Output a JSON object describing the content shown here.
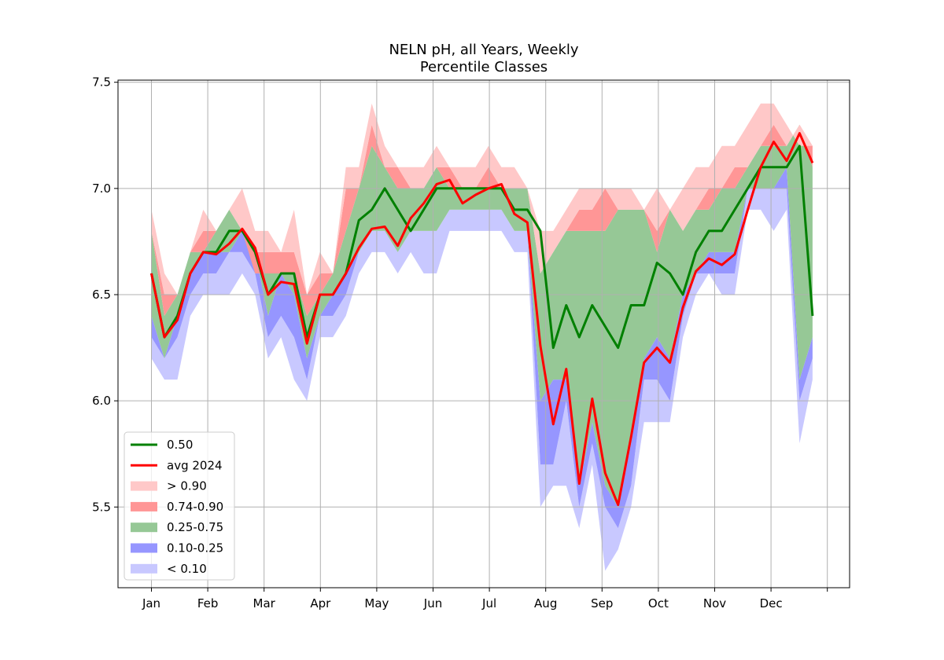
{
  "chart_data": {
    "type": "area",
    "title": "NELN pH, all Years, Weekly",
    "subtitle": "Percentile Classes",
    "xlabel": "",
    "ylabel": "",
    "ylim": [
      5.12,
      7.51
    ],
    "yticks": [
      "5.5",
      "6.0",
      "6.5",
      "7.0",
      "7.5"
    ],
    "ytick_values": [
      5.5,
      6.0,
      6.5,
      7.0,
      7.5
    ],
    "xticks": [
      "Jan",
      "Feb",
      "Mar",
      "Apr",
      "May",
      "Jun",
      "Jul",
      "Aug",
      "Sep",
      "Oct",
      "Nov",
      "Dec",
      ""
    ],
    "grid": true,
    "legend_position": "lower-left",
    "colors": {
      "median": "#008000",
      "avg": "#ff0000",
      "p90plus": "#ffc8c8",
      "p74_90": "#ff9696",
      "p25_75": "#96c896",
      "p10_25": "#9696ff",
      "p10minus": "#c8c8ff"
    },
    "weeks": [
      1,
      2,
      3,
      4,
      5,
      6,
      7,
      8,
      9,
      10,
      11,
      12,
      13,
      14,
      15,
      16,
      17,
      18,
      19,
      20,
      21,
      22,
      23,
      24,
      25,
      26,
      27,
      28,
      29,
      30,
      31,
      32,
      33,
      34,
      35,
      36,
      37,
      38,
      39,
      40,
      41,
      42,
      43,
      44,
      45,
      46,
      47,
      48,
      49,
      50,
      51,
      52
    ],
    "percentiles": {
      "p0": [
        6.2,
        6.1,
        6.1,
        6.4,
        6.5,
        6.5,
        6.5,
        6.6,
        6.5,
        6.2,
        6.3,
        6.1,
        6.0,
        6.3,
        6.3,
        6.4,
        6.6,
        6.7,
        6.7,
        6.6,
        6.7,
        6.6,
        6.6,
        6.8,
        6.8,
        6.8,
        6.8,
        6.8,
        6.7,
        6.7,
        5.5,
        5.6,
        5.6,
        5.4,
        5.7,
        5.2,
        5.3,
        5.5,
        5.9,
        5.9,
        5.9,
        6.3,
        6.5,
        6.6,
        6.5,
        6.5,
        6.9,
        6.9,
        6.8,
        6.9,
        5.8,
        6.1
      ],
      "p10": [
        6.3,
        6.2,
        6.3,
        6.5,
        6.6,
        6.6,
        6.7,
        6.7,
        6.6,
        6.3,
        6.4,
        6.3,
        6.1,
        6.4,
        6.4,
        6.5,
        6.7,
        6.8,
        6.8,
        6.7,
        6.8,
        6.8,
        6.8,
        6.9,
        6.9,
        6.9,
        6.9,
        6.9,
        6.8,
        6.8,
        5.7,
        5.7,
        6.0,
        5.5,
        5.8,
        5.5,
        5.4,
        5.6,
        6.1,
        6.1,
        6.0,
        6.4,
        6.6,
        6.6,
        6.6,
        6.6,
        7.0,
        7.0,
        7.0,
        7.0,
        6.0,
        6.2
      ],
      "p25": [
        6.4,
        6.2,
        6.4,
        6.6,
        6.7,
        6.7,
        6.7,
        6.8,
        6.7,
        6.4,
        6.6,
        6.5,
        6.2,
        6.4,
        6.5,
        6.6,
        6.7,
        6.8,
        6.8,
        6.7,
        6.8,
        6.8,
        6.8,
        6.9,
        6.9,
        6.9,
        6.9,
        6.9,
        6.8,
        6.8,
        6.0,
        6.1,
        6.1,
        5.6,
        5.9,
        5.6,
        5.5,
        5.8,
        6.2,
        6.3,
        6.2,
        6.5,
        6.6,
        6.7,
        6.7,
        6.7,
        7.0,
        7.0,
        7.0,
        7.1,
        6.1,
        6.3
      ],
      "p75": [
        6.8,
        6.4,
        6.5,
        6.7,
        6.7,
        6.8,
        6.9,
        6.8,
        6.6,
        6.6,
        6.6,
        6.6,
        6.4,
        6.5,
        6.6,
        6.8,
        7.0,
        7.2,
        7.1,
        7.0,
        7.0,
        7.0,
        7.1,
        7.0,
        7.0,
        7.0,
        7.0,
        7.0,
        7.0,
        7.0,
        6.6,
        6.7,
        6.8,
        6.8,
        6.8,
        6.8,
        6.9,
        6.9,
        6.9,
        6.7,
        6.9,
        6.8,
        6.9,
        6.9,
        7.0,
        7.0,
        7.1,
        7.2,
        7.2,
        7.2,
        7.3,
        7.1
      ],
      "p90": [
        6.8,
        6.5,
        6.5,
        6.7,
        6.8,
        6.8,
        6.9,
        6.8,
        6.7,
        6.7,
        6.7,
        6.7,
        6.5,
        6.6,
        6.6,
        7.0,
        7.0,
        7.3,
        7.1,
        7.1,
        7.0,
        7.0,
        7.1,
        7.1,
        7.0,
        7.0,
        7.1,
        7.0,
        7.0,
        7.0,
        6.6,
        6.7,
        6.8,
        6.9,
        6.9,
        7.0,
        6.9,
        6.9,
        6.9,
        6.8,
        6.9,
        6.8,
        6.9,
        7.0,
        7.0,
        7.1,
        7.1,
        7.2,
        7.3,
        7.2,
        7.3,
        7.2
      ],
      "p100": [
        6.9,
        6.6,
        6.5,
        6.7,
        6.9,
        6.8,
        6.9,
        7.0,
        6.8,
        6.8,
        6.7,
        6.9,
        6.5,
        6.7,
        6.6,
        7.1,
        7.1,
        7.4,
        7.2,
        7.1,
        7.1,
        7.1,
        7.2,
        7.1,
        7.1,
        7.1,
        7.2,
        7.1,
        7.1,
        7.0,
        6.8,
        6.8,
        6.9,
        7.0,
        7.0,
        7.0,
        7.0,
        7.0,
        6.9,
        7.0,
        6.9,
        7.0,
        7.1,
        7.1,
        7.2,
        7.2,
        7.3,
        7.4,
        7.4,
        7.3,
        7.2,
        7.2
      ]
    },
    "series": [
      {
        "name": "0.50",
        "values": [
          6.6,
          6.3,
          6.4,
          6.6,
          6.7,
          6.7,
          6.8,
          6.8,
          6.7,
          6.5,
          6.6,
          6.6,
          6.3,
          6.5,
          6.5,
          6.6,
          6.85,
          6.9,
          7.0,
          6.9,
          6.8,
          6.9,
          7.0,
          7.0,
          7.0,
          7.0,
          7.0,
          7.0,
          6.9,
          6.9,
          6.8,
          6.25,
          6.45,
          6.3,
          6.45,
          6.35,
          6.25,
          6.45,
          6.45,
          6.65,
          6.6,
          6.5,
          6.7,
          6.8,
          6.8,
          6.9,
          7.0,
          7.1,
          7.1,
          7.1,
          7.2,
          6.4
        ]
      },
      {
        "name": "avg 2024",
        "values": [
          6.6,
          6.3,
          6.38,
          6.6,
          6.7,
          6.69,
          6.74,
          6.81,
          6.72,
          6.5,
          6.56,
          6.55,
          6.27,
          6.5,
          6.5,
          6.6,
          6.72,
          6.81,
          6.82,
          6.73,
          6.86,
          6.93,
          7.02,
          7.04,
          6.93,
          6.97,
          7.0,
          7.02,
          6.88,
          6.84,
          6.26,
          5.89,
          6.15,
          5.61,
          6.01,
          5.66,
          5.51,
          5.83,
          6.18,
          6.25,
          6.18,
          6.44,
          6.61,
          6.67,
          6.64,
          6.69,
          6.9,
          7.1,
          7.22,
          7.13,
          7.26,
          7.12
        ]
      }
    ],
    "legend": [
      "0.50",
      "avg 2024",
      "> 0.90",
      "0.74-0.90",
      "0.25-0.75",
      "0.10-0.25",
      "< 0.10"
    ]
  }
}
